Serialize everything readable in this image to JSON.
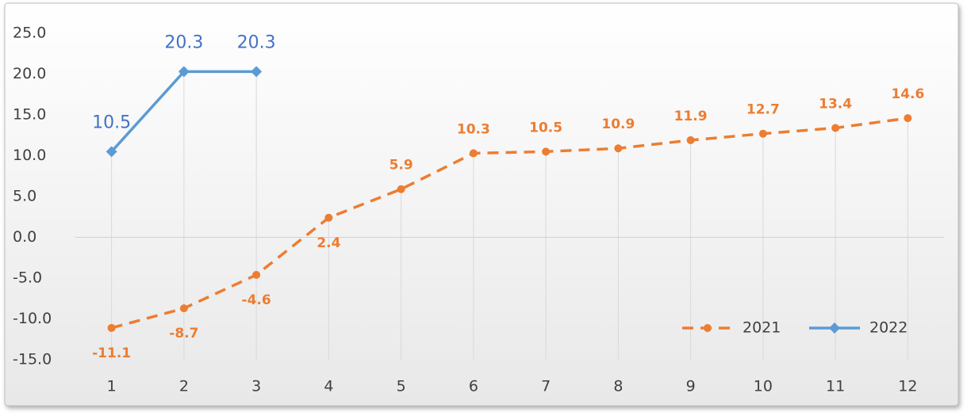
{
  "chart_data": {
    "type": "line",
    "categories": [
      "1",
      "2",
      "3",
      "4",
      "5",
      "6",
      "7",
      "8",
      "9",
      "10",
      "11",
      "12"
    ],
    "series": [
      {
        "name": "2021",
        "color": "#ed7d31",
        "values": [
          -11.1,
          -8.7,
          -4.6,
          2.4,
          5.9,
          10.3,
          10.5,
          10.9,
          11.9,
          12.7,
          13.4,
          14.6
        ]
      },
      {
        "name": "2022",
        "color": "#5b9bd5",
        "values": [
          10.5,
          20.3,
          20.3,
          null,
          null,
          null,
          null,
          null,
          null,
          null,
          null,
          null
        ]
      }
    ],
    "ylim": [
      -15,
      25
    ],
    "yticks": [
      {
        "value": -15,
        "label": "-15.0"
      },
      {
        "value": -10,
        "label": "-10.0"
      },
      {
        "value": -5,
        "label": "-5.0"
      },
      {
        "value": 0,
        "label": "0.0"
      },
      {
        "value": 5,
        "label": "5.0"
      },
      {
        "value": 10,
        "label": "10.0"
      },
      {
        "value": 15,
        "label": "15.0"
      },
      {
        "value": 20,
        "label": "20.0"
      },
      {
        "value": 25,
        "label": "25.0"
      }
    ],
    "drop_lines": true,
    "legend": "lower right"
  }
}
